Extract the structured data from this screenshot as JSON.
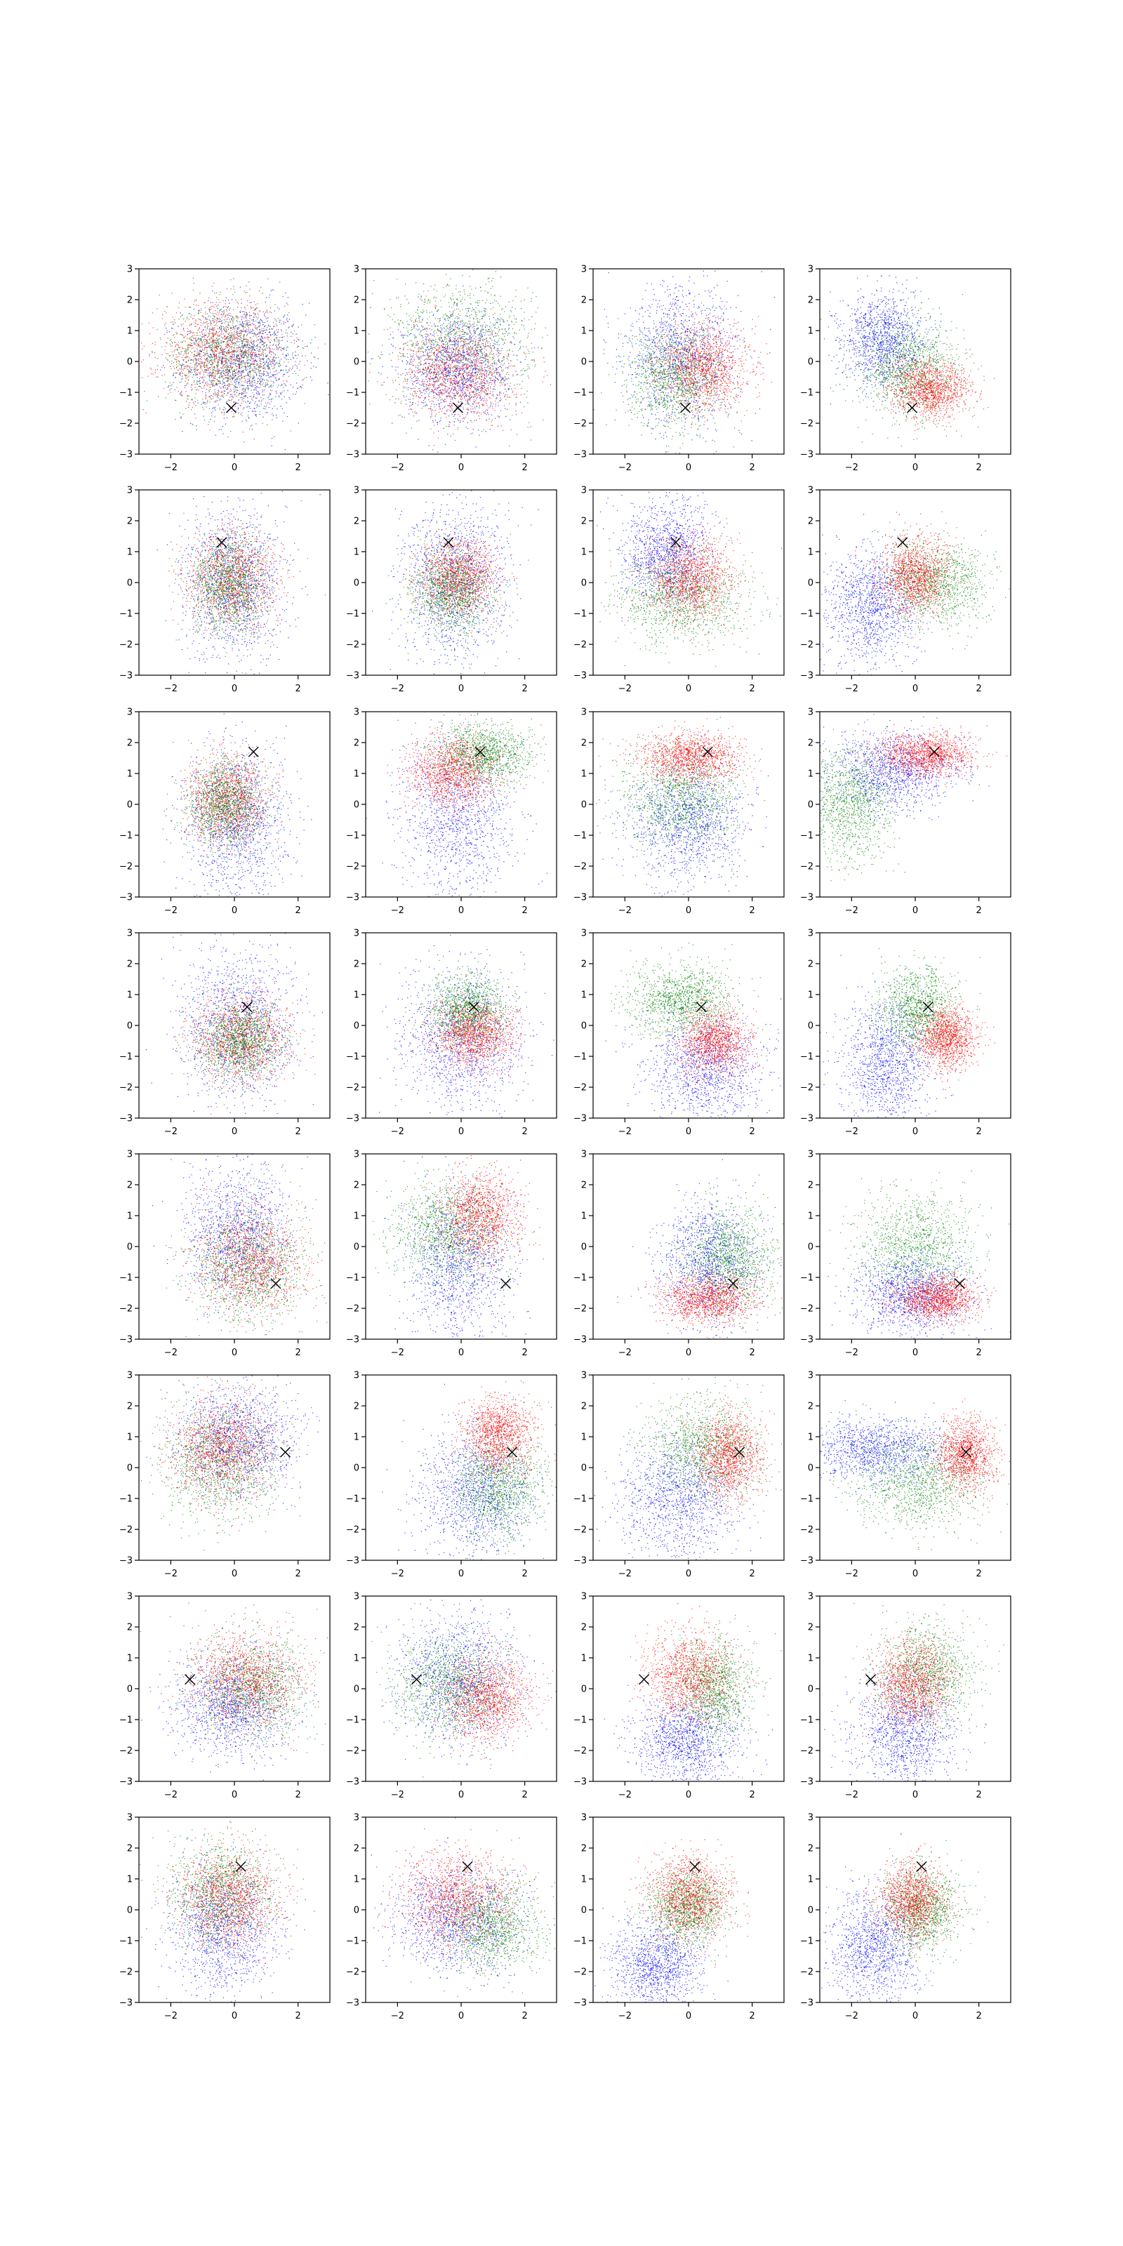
{
  "figure": {
    "rows": 8,
    "cols": 4,
    "colors": {
      "blue": "#0000ff",
      "green": "#008000",
      "red": "#ff0000",
      "marker": "#000000",
      "axes": "#000000"
    }
  },
  "chart_data": {
    "type": "scatter",
    "layout": "8x4 grid of small scatter panels",
    "xlim": [
      -3,
      3
    ],
    "ylim": [
      -3,
      3
    ],
    "xticks": [
      -2,
      0,
      2
    ],
    "yticks": [
      -3,
      -2,
      -1,
      0,
      1,
      2,
      3
    ],
    "xtick_labels": [
      "−2",
      "0",
      "2"
    ],
    "ytick_labels": [
      "−3",
      "−2",
      "−1",
      "0",
      "1",
      "2",
      "3"
    ],
    "grid": false,
    "legend": "none",
    "title": "",
    "xlabel": "",
    "ylabel": "",
    "series_colors": [
      "blue",
      "green",
      "red"
    ],
    "points_per_series": 1200,
    "panels": [
      {
        "row": 0,
        "col": 0,
        "marker": [
          -0.1,
          -1.5
        ],
        "clusters": [
          {
            "c": "blue",
            "mx": 0.3,
            "my": 0.0,
            "sx": 0.95,
            "sy": 0.95
          },
          {
            "c": "green",
            "mx": -0.2,
            "my": 0.2,
            "sx": 0.95,
            "sy": 0.85
          },
          {
            "c": "red",
            "mx": -0.4,
            "my": 0.3,
            "sx": 1.0,
            "sy": 0.8
          }
        ]
      },
      {
        "row": 0,
        "col": 1,
        "marker": [
          -0.1,
          -1.5
        ],
        "clusters": [
          {
            "c": "green",
            "mx": 0.0,
            "my": 0.6,
            "sx": 1.1,
            "sy": 1.0
          },
          {
            "c": "blue",
            "mx": -0.1,
            "my": -0.2,
            "sx": 0.85,
            "sy": 0.9
          },
          {
            "c": "red",
            "mx": -0.1,
            "my": -0.4,
            "sx": 0.85,
            "sy": 0.75
          }
        ]
      },
      {
        "row": 0,
        "col": 2,
        "marker": [
          -0.1,
          -1.5
        ],
        "clusters": [
          {
            "c": "blue",
            "mx": -0.2,
            "my": 0.2,
            "sx": 0.9,
            "sy": 1.1
          },
          {
            "c": "green",
            "mx": -0.4,
            "my": -0.5,
            "sx": 0.75,
            "sy": 0.8
          },
          {
            "c": "red",
            "mx": 0.5,
            "my": -0.2,
            "sx": 0.7,
            "sy": 0.7
          }
        ]
      },
      {
        "row": 0,
        "col": 3,
        "marker": [
          -0.1,
          -1.5
        ],
        "clusters": [
          {
            "c": "blue",
            "mx": -1.0,
            "my": 0.7,
            "sx": 0.65,
            "sy": 0.75
          },
          {
            "c": "green",
            "mx": -0.2,
            "my": -0.3,
            "sx": 0.8,
            "sy": 0.8
          },
          {
            "c": "red",
            "mx": 0.5,
            "my": -0.9,
            "sx": 0.6,
            "sy": 0.45
          }
        ]
      },
      {
        "row": 1,
        "col": 0,
        "marker": [
          -0.4,
          1.3
        ],
        "clusters": [
          {
            "c": "blue",
            "mx": 0.0,
            "my": 0.0,
            "sx": 0.8,
            "sy": 1.2
          },
          {
            "c": "red",
            "mx": -0.1,
            "my": 0.1,
            "sx": 0.7,
            "sy": 0.8
          },
          {
            "c": "green",
            "mx": -0.2,
            "my": -0.1,
            "sx": 0.6,
            "sy": 0.8
          }
        ]
      },
      {
        "row": 1,
        "col": 1,
        "marker": [
          -0.4,
          1.3
        ],
        "clusters": [
          {
            "c": "blue",
            "mx": -0.2,
            "my": 0.0,
            "sx": 0.8,
            "sy": 1.3
          },
          {
            "c": "red",
            "mx": -0.1,
            "my": 0.2,
            "sx": 0.6,
            "sy": 0.6
          },
          {
            "c": "green",
            "mx": -0.3,
            "my": -0.3,
            "sx": 0.65,
            "sy": 0.75
          }
        ]
      },
      {
        "row": 1,
        "col": 2,
        "marker": [
          -0.4,
          1.3
        ],
        "clusters": [
          {
            "c": "blue",
            "mx": -0.7,
            "my": 1.0,
            "sx": 0.7,
            "sy": 0.85
          },
          {
            "c": "green",
            "mx": -0.2,
            "my": -0.5,
            "sx": 1.0,
            "sy": 0.75
          },
          {
            "c": "red",
            "mx": 0.1,
            "my": 0.1,
            "sx": 0.65,
            "sy": 0.65
          }
        ]
      },
      {
        "row": 1,
        "col": 3,
        "marker": [
          -0.4,
          1.3
        ],
        "clusters": [
          {
            "c": "blue",
            "mx": -1.4,
            "my": -0.8,
            "sx": 0.75,
            "sy": 0.95
          },
          {
            "c": "green",
            "mx": 0.6,
            "my": 0.0,
            "sx": 0.85,
            "sy": 0.7
          },
          {
            "c": "red",
            "mx": 0.0,
            "my": 0.2,
            "sx": 0.55,
            "sy": 0.6
          }
        ]
      },
      {
        "row": 2,
        "col": 0,
        "marker": [
          0.6,
          1.7
        ],
        "clusters": [
          {
            "c": "blue",
            "mx": 0.1,
            "my": -0.6,
            "sx": 0.8,
            "sy": 1.2
          },
          {
            "c": "red",
            "mx": -0.2,
            "my": 0.2,
            "sx": 0.6,
            "sy": 0.7
          },
          {
            "c": "green",
            "mx": -0.3,
            "my": 0.0,
            "sx": 0.6,
            "sy": 0.7
          }
        ]
      },
      {
        "row": 2,
        "col": 1,
        "marker": [
          0.6,
          1.7
        ],
        "clusters": [
          {
            "c": "blue",
            "mx": -0.1,
            "my": -0.5,
            "sx": 0.9,
            "sy": 1.2
          },
          {
            "c": "green",
            "mx": 0.7,
            "my": 1.6,
            "sx": 0.75,
            "sy": 0.5
          },
          {
            "c": "red",
            "mx": -0.3,
            "my": 1.0,
            "sx": 0.7,
            "sy": 0.6
          }
        ]
      },
      {
        "row": 2,
        "col": 2,
        "marker": [
          0.6,
          1.7
        ],
        "clusters": [
          {
            "c": "blue",
            "mx": 0.0,
            "my": -0.6,
            "sx": 0.9,
            "sy": 1.0
          },
          {
            "c": "green",
            "mx": -0.3,
            "my": 0.2,
            "sx": 0.9,
            "sy": 0.8
          },
          {
            "c": "red",
            "mx": 0.1,
            "my": 1.5,
            "sx": 0.75,
            "sy": 0.4
          }
        ]
      },
      {
        "row": 2,
        "col": 3,
        "marker": [
          0.6,
          1.7
        ],
        "clusters": [
          {
            "c": "green",
            "mx": -2.1,
            "my": 0.0,
            "sx": 0.7,
            "sy": 0.9
          },
          {
            "c": "blue",
            "mx": -0.6,
            "my": 1.1,
            "sx": 1.0,
            "sy": 0.6
          },
          {
            "c": "red",
            "mx": 0.3,
            "my": 1.6,
            "sx": 0.75,
            "sy": 0.35
          }
        ]
      },
      {
        "row": 3,
        "col": 0,
        "marker": [
          0.4,
          0.6
        ],
        "clusters": [
          {
            "c": "blue",
            "mx": 0.1,
            "my": 0.0,
            "sx": 0.9,
            "sy": 1.2
          },
          {
            "c": "red",
            "mx": 0.2,
            "my": -0.4,
            "sx": 0.75,
            "sy": 0.7
          },
          {
            "c": "green",
            "mx": 0.2,
            "my": -0.5,
            "sx": 0.65,
            "sy": 0.65
          }
        ]
      },
      {
        "row": 3,
        "col": 1,
        "marker": [
          0.4,
          0.6
        ],
        "clusters": [
          {
            "c": "blue",
            "mx": 0.0,
            "my": -0.5,
            "sx": 0.9,
            "sy": 1.2
          },
          {
            "c": "green",
            "mx": 0.2,
            "my": 0.5,
            "sx": 0.6,
            "sy": 0.55
          },
          {
            "c": "red",
            "mx": 0.4,
            "my": -0.3,
            "sx": 0.65,
            "sy": 0.55
          }
        ]
      },
      {
        "row": 3,
        "col": 2,
        "marker": [
          0.4,
          0.6
        ],
        "clusters": [
          {
            "c": "blue",
            "mx": 0.5,
            "my": -1.4,
            "sx": 0.9,
            "sy": 0.9
          },
          {
            "c": "green",
            "mx": -0.2,
            "my": 0.8,
            "sx": 0.8,
            "sy": 0.6
          },
          {
            "c": "red",
            "mx": 0.8,
            "my": -0.5,
            "sx": 0.55,
            "sy": 0.55
          }
        ]
      },
      {
        "row": 3,
        "col": 3,
        "marker": [
          0.4,
          0.6
        ],
        "clusters": [
          {
            "c": "blue",
            "mx": -0.9,
            "my": -1.2,
            "sx": 0.7,
            "sy": 1.0
          },
          {
            "c": "green",
            "mx": 0.1,
            "my": 0.5,
            "sx": 0.6,
            "sy": 0.7
          },
          {
            "c": "red",
            "mx": 1.0,
            "my": -0.4,
            "sx": 0.45,
            "sy": 0.5
          }
        ]
      },
      {
        "row": 4,
        "col": 0,
        "marker": [
          1.3,
          -1.2
        ],
        "clusters": [
          {
            "c": "blue",
            "mx": 0.1,
            "my": 0.4,
            "sx": 0.8,
            "sy": 1.1
          },
          {
            "c": "green",
            "mx": 0.4,
            "my": -0.6,
            "sx": 0.9,
            "sy": 0.9
          },
          {
            "c": "red",
            "mx": 0.5,
            "my": -0.5,
            "sx": 0.85,
            "sy": 0.85
          }
        ]
      },
      {
        "row": 4,
        "col": 1,
        "marker": [
          1.4,
          -1.2
        ],
        "clusters": [
          {
            "c": "blue",
            "mx": 0.0,
            "my": -0.6,
            "sx": 0.8,
            "sy": 1.2
          },
          {
            "c": "green",
            "mx": -0.4,
            "my": 0.5,
            "sx": 0.9,
            "sy": 0.8
          },
          {
            "c": "red",
            "mx": 0.6,
            "my": 1.0,
            "sx": 0.6,
            "sy": 0.7
          }
        ]
      },
      {
        "row": 4,
        "col": 2,
        "marker": [
          1.4,
          -1.2
        ],
        "clusters": [
          {
            "c": "blue",
            "mx": 0.6,
            "my": -0.5,
            "sx": 0.75,
            "sy": 1.0
          },
          {
            "c": "green",
            "mx": 1.3,
            "my": -0.4,
            "sx": 0.7,
            "sy": 0.8
          },
          {
            "c": "red",
            "mx": 0.6,
            "my": -1.7,
            "sx": 0.75,
            "sy": 0.4
          }
        ]
      },
      {
        "row": 4,
        "col": 3,
        "marker": [
          1.4,
          -1.2
        ],
        "clusters": [
          {
            "c": "green",
            "mx": 0.0,
            "my": 0.0,
            "sx": 0.9,
            "sy": 0.9
          },
          {
            "c": "blue",
            "mx": -0.1,
            "my": -1.5,
            "sx": 0.9,
            "sy": 0.6
          },
          {
            "c": "red",
            "mx": 0.7,
            "my": -1.7,
            "sx": 0.65,
            "sy": 0.35
          }
        ]
      },
      {
        "row": 5,
        "col": 0,
        "marker": [
          1.6,
          0.5
        ],
        "clusters": [
          {
            "c": "blue",
            "mx": 0.1,
            "my": 0.9,
            "sx": 0.9,
            "sy": 0.9
          },
          {
            "c": "green",
            "mx": -0.5,
            "my": 0.2,
            "sx": 0.9,
            "sy": 0.9
          },
          {
            "c": "red",
            "mx": -0.4,
            "my": 0.6,
            "sx": 0.8,
            "sy": 0.8
          }
        ]
      },
      {
        "row": 5,
        "col": 1,
        "marker": [
          1.6,
          0.5
        ],
        "clusters": [
          {
            "c": "blue",
            "mx": 0.4,
            "my": -0.8,
            "sx": 0.9,
            "sy": 1.0
          },
          {
            "c": "green",
            "mx": 1.2,
            "my": -0.6,
            "sx": 0.7,
            "sy": 0.8
          },
          {
            "c": "red",
            "mx": 1.2,
            "my": 1.1,
            "sx": 0.55,
            "sy": 0.6
          }
        ]
      },
      {
        "row": 5,
        "col": 2,
        "marker": [
          1.6,
          0.5
        ],
        "clusters": [
          {
            "c": "blue",
            "mx": -0.3,
            "my": -1.0,
            "sx": 0.9,
            "sy": 0.9
          },
          {
            "c": "green",
            "mx": 0.5,
            "my": 0.6,
            "sx": 0.9,
            "sy": 0.8
          },
          {
            "c": "red",
            "mx": 1.3,
            "my": 0.4,
            "sx": 0.5,
            "sy": 0.7
          }
        ]
      },
      {
        "row": 5,
        "col": 3,
        "marker": [
          1.6,
          0.5
        ],
        "clusters": [
          {
            "c": "blue",
            "mx": -1.2,
            "my": 0.6,
            "sx": 1.1,
            "sy": 0.5
          },
          {
            "c": "green",
            "mx": 0.1,
            "my": -0.4,
            "sx": 1.0,
            "sy": 0.8
          },
          {
            "c": "red",
            "mx": 1.6,
            "my": 0.4,
            "sx": 0.45,
            "sy": 0.55
          }
        ]
      },
      {
        "row": 6,
        "col": 0,
        "marker": [
          -1.4,
          0.3
        ],
        "clusters": [
          {
            "c": "blue",
            "mx": -0.1,
            "my": -0.5,
            "sx": 0.9,
            "sy": 0.8
          },
          {
            "c": "green",
            "mx": 0.6,
            "my": 0.0,
            "sx": 0.9,
            "sy": 0.8
          },
          {
            "c": "red",
            "mx": 0.4,
            "my": 0.3,
            "sx": 0.9,
            "sy": 0.8
          }
        ]
      },
      {
        "row": 6,
        "col": 1,
        "marker": [
          -1.4,
          0.3
        ],
        "clusters": [
          {
            "c": "blue",
            "mx": 0.0,
            "my": 0.3,
            "sx": 0.9,
            "sy": 1.0
          },
          {
            "c": "green",
            "mx": -0.3,
            "my": 0.1,
            "sx": 0.9,
            "sy": 0.85
          },
          {
            "c": "red",
            "mx": 0.8,
            "my": -0.3,
            "sx": 0.7,
            "sy": 0.7
          }
        ]
      },
      {
        "row": 6,
        "col": 2,
        "marker": [
          -1.4,
          0.3
        ],
        "clusters": [
          {
            "c": "blue",
            "mx": -0.1,
            "my": -1.7,
            "sx": 0.8,
            "sy": 0.7
          },
          {
            "c": "green",
            "mx": 0.8,
            "my": 0.0,
            "sx": 0.6,
            "sy": 0.8
          },
          {
            "c": "red",
            "mx": 0.0,
            "my": 0.4,
            "sx": 0.7,
            "sy": 0.75
          }
        ]
      },
      {
        "row": 6,
        "col": 3,
        "marker": [
          -1.4,
          0.3
        ],
        "clusters": [
          {
            "c": "blue",
            "mx": -0.3,
            "my": -1.4,
            "sx": 0.8,
            "sy": 0.9
          },
          {
            "c": "green",
            "mx": 0.3,
            "my": 0.5,
            "sx": 0.8,
            "sy": 0.8
          },
          {
            "c": "red",
            "mx": -0.1,
            "my": 0.2,
            "sx": 0.6,
            "sy": 0.7
          }
        ]
      },
      {
        "row": 7,
        "col": 0,
        "marker": [
          0.2,
          1.4
        ],
        "clusters": [
          {
            "c": "blue",
            "mx": -0.3,
            "my": -0.7,
            "sx": 0.8,
            "sy": 1.0
          },
          {
            "c": "green",
            "mx": -0.4,
            "my": 0.5,
            "sx": 0.8,
            "sy": 0.8
          },
          {
            "c": "red",
            "mx": -0.2,
            "my": 0.4,
            "sx": 0.8,
            "sy": 0.8
          }
        ]
      },
      {
        "row": 7,
        "col": 1,
        "marker": [
          0.2,
          1.4
        ],
        "clusters": [
          {
            "c": "blue",
            "mx": -0.2,
            "my": -0.3,
            "sx": 1.0,
            "sy": 0.85
          },
          {
            "c": "green",
            "mx": 0.9,
            "my": -0.5,
            "sx": 0.8,
            "sy": 0.75
          },
          {
            "c": "red",
            "mx": -0.1,
            "my": 0.4,
            "sx": 0.9,
            "sy": 0.75
          }
        ]
      },
      {
        "row": 7,
        "col": 2,
        "marker": [
          0.2,
          1.4
        ],
        "clusters": [
          {
            "c": "blue",
            "mx": -1.0,
            "my": -1.8,
            "sx": 0.75,
            "sy": 0.7
          },
          {
            "c": "green",
            "mx": 0.0,
            "my": 0.1,
            "sx": 0.6,
            "sy": 0.6
          },
          {
            "c": "red",
            "mx": 0.0,
            "my": 0.4,
            "sx": 0.65,
            "sy": 0.65
          }
        ]
      },
      {
        "row": 7,
        "col": 3,
        "marker": [
          0.2,
          1.4
        ],
        "clusters": [
          {
            "c": "blue",
            "mx": -1.3,
            "my": -1.3,
            "sx": 0.7,
            "sy": 0.9
          },
          {
            "c": "green",
            "mx": 0.2,
            "my": 0.0,
            "sx": 0.6,
            "sy": 0.7
          },
          {
            "c": "red",
            "mx": -0.1,
            "my": 0.3,
            "sx": 0.5,
            "sy": 0.6
          }
        ]
      }
    ]
  }
}
